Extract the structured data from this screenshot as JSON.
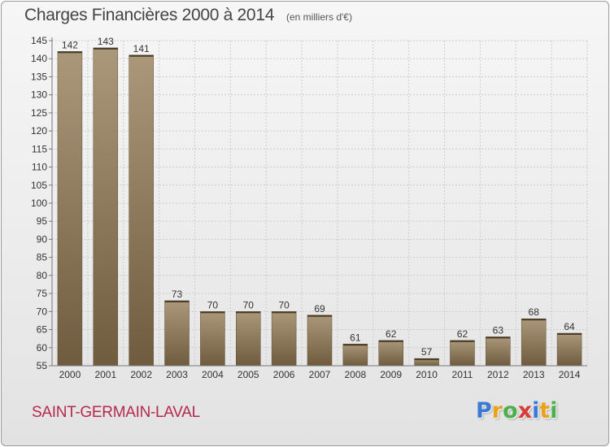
{
  "title": "Charges Financières 2000 à 2014",
  "subtitle": "(en milliers d'€)",
  "commune": "SAINT-GERMAIN-LAVAL",
  "logo": {
    "letters": [
      "P",
      "r",
      "o",
      "x",
      "i",
      "t",
      "i"
    ],
    "colors": [
      "#3a7ad6",
      "#e8a21c",
      "#4bb04b",
      "#d93a3a",
      "#3a7ad6",
      "#e8a21c",
      "#4bb04b"
    ]
  },
  "colors": {
    "bar_light": "#ab987a",
    "bar_dark": "#6f5c3f",
    "grid": "#cccccc",
    "axis": "#777777"
  },
  "chart_data": {
    "type": "bar",
    "title": "Charges Financières 2000 à 2014",
    "subtitle": "(en milliers d'€)",
    "categories": [
      "2000",
      "2001",
      "2002",
      "2003",
      "2004",
      "2005",
      "2006",
      "2007",
      "2008",
      "2009",
      "2010",
      "2011",
      "2012",
      "2013",
      "2014"
    ],
    "values": [
      142,
      143,
      141,
      73,
      70,
      70,
      70,
      69,
      61,
      62,
      57,
      62,
      63,
      68,
      64
    ],
    "ylim": [
      55,
      145
    ],
    "yticks": [
      55,
      60,
      65,
      70,
      75,
      80,
      85,
      90,
      95,
      100,
      105,
      110,
      115,
      120,
      125,
      130,
      135,
      140,
      145
    ],
    "grid": true,
    "xlabel": "",
    "ylabel": ""
  }
}
